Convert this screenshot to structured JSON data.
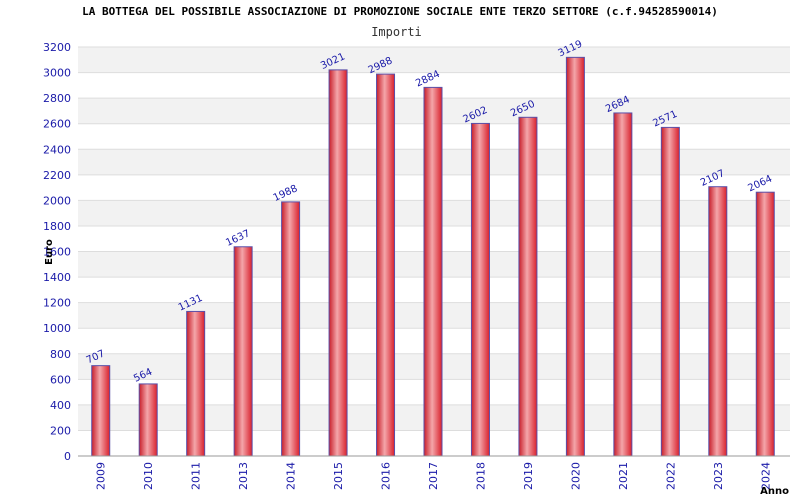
{
  "chart_data": {
    "type": "bar",
    "title": "LA BOTTEGA DEL POSSIBILE ASSOCIAZIONE DI PROMOZIONE SOCIALE ENTE TERZO SETTORE (c.f.94528590014)",
    "subtitle": "Importi",
    "xlabel": "Anno",
    "ylabel": "Euro",
    "categories": [
      "2009",
      "2010",
      "2011",
      "2013",
      "2014",
      "2015",
      "2016",
      "2017",
      "2018",
      "2019",
      "2020",
      "2021",
      "2022",
      "2023",
      "2024"
    ],
    "values": [
      707,
      564,
      1131,
      1637,
      1988,
      3021,
      2988,
      2884,
      2602,
      2650,
      3119,
      2684,
      2571,
      2107,
      2064
    ],
    "data_labels": [
      "707",
      "564",
      "1131",
      "1637",
      "1988",
      "3021",
      "2988",
      "2884",
      "2602",
      "2650",
      "3119",
      "2684",
      "2571",
      "2107",
      "2064"
    ],
    "ylim": [
      0,
      3200
    ],
    "yticks": [
      "0",
      "200",
      "400",
      "600",
      "800",
      "1000",
      "1200",
      "1400",
      "1600",
      "1800",
      "2000",
      "2200",
      "2400",
      "2600",
      "2800",
      "3000",
      "3200"
    ],
    "grid": true,
    "colors": {
      "bar": "#e8353f",
      "bar_highlight": "#f4a6aa",
      "bar_outline": "#5a4fa8",
      "tick_text": "#1a1aa8",
      "band": "#f2f2f2",
      "grid": "#dddddd"
    }
  }
}
